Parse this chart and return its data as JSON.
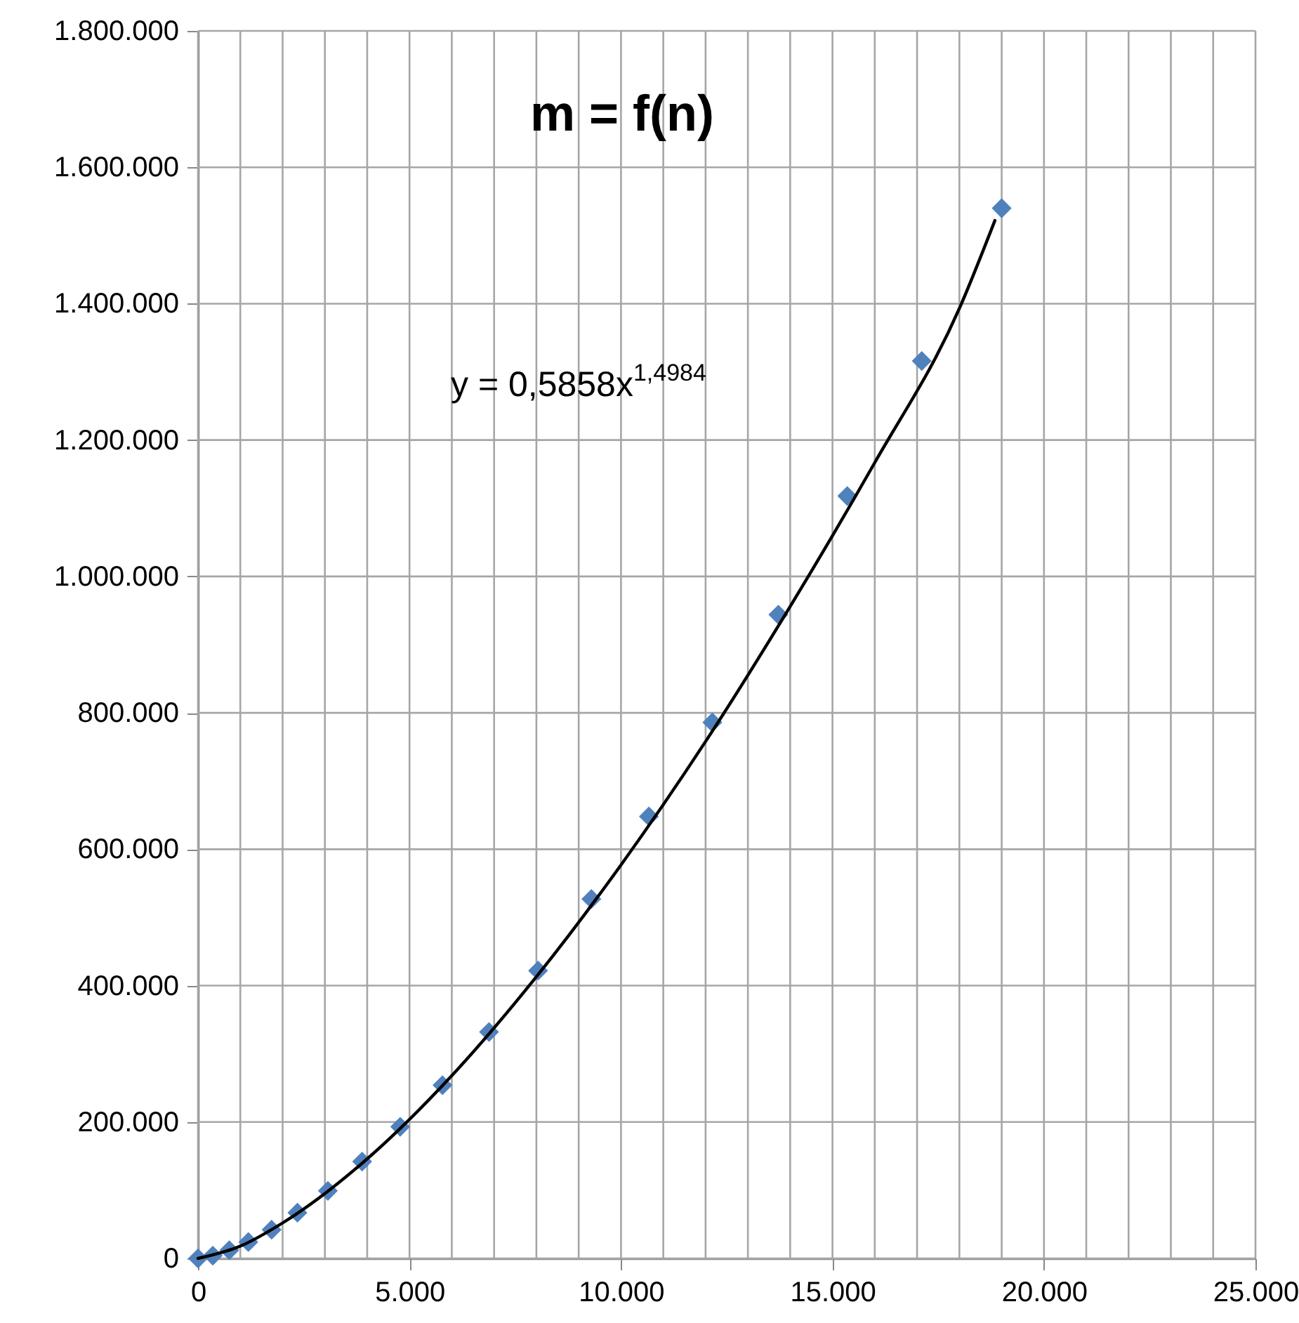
{
  "chart_data": {
    "type": "scatter",
    "title": "m = f(n)",
    "annotations": [
      "y = 0,5858x$^{1,4984}$"
    ],
    "xlim": [
      0,
      25000
    ],
    "ylim": [
      0,
      1800000
    ],
    "xticks": [
      {
        "value": 0,
        "label": "0"
      },
      {
        "value": 1000,
        "label": null
      },
      {
        "value": 2000,
        "label": null
      },
      {
        "value": 3000,
        "label": null
      },
      {
        "value": 4000,
        "label": null
      },
      {
        "value": 5000,
        "label": "5.000"
      },
      {
        "value": 6000,
        "label": null
      },
      {
        "value": 7000,
        "label": null
      },
      {
        "value": 8000,
        "label": null
      },
      {
        "value": 9000,
        "label": null
      },
      {
        "value": 10000,
        "label": "10.000"
      },
      {
        "value": 11000,
        "label": null
      },
      {
        "value": 12000,
        "label": null
      },
      {
        "value": 13000,
        "label": null
      },
      {
        "value": 14000,
        "label": null
      },
      {
        "value": 15000,
        "label": "15.000"
      },
      {
        "value": 16000,
        "label": null
      },
      {
        "value": 17000,
        "label": null
      },
      {
        "value": 18000,
        "label": null
      },
      {
        "value": 19000,
        "label": null
      },
      {
        "value": 20000,
        "label": "20.000"
      },
      {
        "value": 21000,
        "label": null
      },
      {
        "value": 22000,
        "label": null
      },
      {
        "value": 23000,
        "label": null
      },
      {
        "value": 24000,
        "label": null
      },
      {
        "value": 25000,
        "label": "25.000"
      }
    ],
    "yticks": [
      {
        "value": 0,
        "label": "0"
      },
      {
        "value": 200000,
        "label": "200.000"
      },
      {
        "value": 400000,
        "label": "400.000"
      },
      {
        "value": 600000,
        "label": "600.000"
      },
      {
        "value": 800000,
        "label": "800.000"
      },
      {
        "value": 1000000,
        "label": "1.000.000"
      },
      {
        "value": 1200000,
        "label": "1.200.000"
      },
      {
        "value": 1400000,
        "label": "1.400.000"
      },
      {
        "value": 1600000,
        "label": "1.600.000"
      },
      {
        "value": 1800000,
        "label": "1.800.000"
      }
    ],
    "grid": true,
    "series": [
      {
        "marker": "diamond",
        "color": "#4f81bd",
        "x": [
          0,
          350,
          740,
          1190,
          1740,
          2350,
          3070,
          3880,
          4780,
          5780,
          6880,
          8040,
          9300,
          10660,
          12160,
          13720,
          15350,
          17110,
          19000
        ],
        "values": [
          0,
          4000,
          12000,
          24000,
          42000,
          67000,
          99000,
          142000,
          193000,
          254000,
          332000,
          422000,
          527000,
          648000,
          786000,
          944000,
          1118000,
          1316000,
          1540000
        ]
      },
      {
        "type": "line",
        "marker": "none",
        "line_style": "solid",
        "color": "#000000",
        "x": [
          0,
          1000,
          2000,
          4000,
          6000,
          8000,
          10000,
          12000,
          14000,
          16000,
          18000,
          18840
        ],
        "values": [
          0,
          18000,
          52000,
          146000,
          268000,
          413000,
          577000,
          758000,
          956000,
          1167000,
          1393000,
          1522000
        ]
      }
    ]
  }
}
